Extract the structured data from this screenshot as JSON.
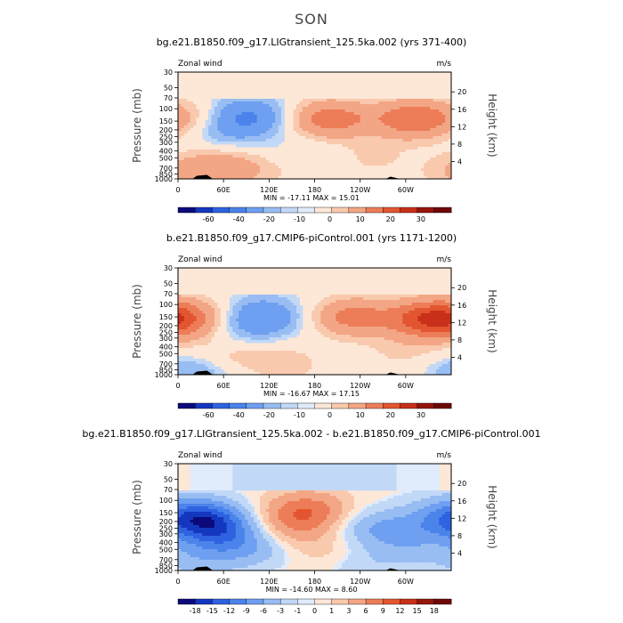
{
  "figure": {
    "season": "SON",
    "colors": {
      "neg": [
        "#0c0a7a",
        "#1437bf",
        "#2f62e0",
        "#4a83ea",
        "#6e9ff0",
        "#98bdf3",
        "#c2d8f7",
        "#e0ecfb"
      ],
      "pos": [
        "#fde7d6",
        "#f9c9ae",
        "#f3a685",
        "#ec7d58",
        "#e35530",
        "#c8301a",
        "#95140c",
        "#6e0808"
      ]
    }
  },
  "chart_data": [
    {
      "type": "heatmap",
      "title": "bg.e21.B1850.f09_g17.LIGtransient_125.5ka.002 (yrs 371-400)",
      "corner_left": "Zonal wind",
      "corner_right": "m/s",
      "ylabel": "Pressure (mb)",
      "ylabel_right": "Height (km)",
      "x_ticks": [
        "0",
        "60E",
        "120E",
        "180",
        "120W",
        "60W"
      ],
      "p_ticks": [
        "30",
        "50",
        "70",
        "100",
        "150",
        "200",
        "250",
        "300",
        "400",
        "500",
        "700",
        "850",
        "1000"
      ],
      "h_ticks": [
        "20",
        "16",
        "12",
        "8",
        "4"
      ],
      "stats": "MIN = -17.11   MAX =  15.01",
      "colorbar_labels": [
        "-60",
        "-40",
        "-20",
        "-10",
        "0",
        "10",
        "20",
        "30"
      ],
      "blobs": [
        {
          "lon": 90,
          "p": 130,
          "v": -11
        },
        {
          "lon": 55,
          "p": 220,
          "v": -4
        },
        {
          "lon": 200,
          "p": 140,
          "v": 13
        },
        {
          "lon": 310,
          "p": 140,
          "v": 14
        },
        {
          "lon": 60,
          "p": 700,
          "v": 8
        },
        {
          "lon": 140,
          "p": 700,
          "v": 3
        },
        {
          "lon": 255,
          "p": 500,
          "v": 3
        },
        {
          "lon": 25,
          "p": 140,
          "v": 5
        },
        {
          "lon": 160,
          "p": 500,
          "v": -3
        },
        {
          "lon": 10,
          "p": 800,
          "v": 4
        }
      ]
    },
    {
      "type": "heatmap",
      "title": "b.e21.B1850.f09_g17.CMIP6-piControl.001 (yrs 1171-1200)",
      "corner_left": "Zonal wind",
      "corner_right": "m/s",
      "ylabel": "Pressure (mb)",
      "ylabel_right": "Height (km)",
      "x_ticks": [
        "0",
        "60E",
        "120E",
        "180",
        "120W",
        "60W"
      ],
      "p_ticks": [
        "30",
        "50",
        "70",
        "100",
        "150",
        "200",
        "250",
        "300",
        "400",
        "500",
        "700",
        "850",
        "1000"
      ],
      "h_ticks": [
        "20",
        "16",
        "12",
        "8",
        "4"
      ],
      "stats": "MIN = -16.67   MAX =  17.15",
      "colorbar_labels": [
        "-60",
        "-40",
        "-20",
        "-10",
        "0",
        "10",
        "20",
        "30"
      ],
      "blobs": [
        {
          "lon": 110,
          "p": 150,
          "v": -10
        },
        {
          "lon": 70,
          "p": 300,
          "v": -3
        },
        {
          "lon": 15,
          "p": 160,
          "v": 10
        },
        {
          "lon": 230,
          "p": 150,
          "v": 12
        },
        {
          "lon": 330,
          "p": 160,
          "v": 17
        },
        {
          "lon": 60,
          "p": 500,
          "v": 5
        },
        {
          "lon": 140,
          "p": 700,
          "v": 4
        },
        {
          "lon": 300,
          "p": 500,
          "v": 3
        },
        {
          "lon": 20,
          "p": 850,
          "v": -6
        }
      ]
    },
    {
      "type": "heatmap",
      "title": "bg.e21.B1850.f09_g17.LIGtransient_125.5ka.002 - b.e21.B1850.f09_g17.CMIP6-piControl.001",
      "corner_left": "Zonal wind",
      "corner_right": "m/s",
      "ylabel": "Pressure (mb)",
      "ylabel_right": "Height (km)",
      "x_ticks": [
        "0",
        "60E",
        "120E",
        "180",
        "120W",
        "60W"
      ],
      "p_ticks": [
        "30",
        "50",
        "70",
        "100",
        "150",
        "200",
        "250",
        "300",
        "400",
        "500",
        "700",
        "850",
        "1000"
      ],
      "h_ticks": [
        "20",
        "16",
        "12",
        "8",
        "4"
      ],
      "stats": "MIN = -14.60   MAX =   8.60",
      "colorbar_labels": [
        "-18",
        "-15",
        "-12",
        "-9",
        "-6",
        "-3",
        "-1",
        "0",
        "1",
        "3",
        "6",
        "9",
        "12",
        "15",
        "18"
      ],
      "blobs": [
        {
          "lon": 30,
          "p": 180,
          "v": -14
        },
        {
          "lon": 60,
          "p": 300,
          "v": -8
        },
        {
          "lon": 100,
          "p": 500,
          "v": -4
        },
        {
          "lon": 170,
          "p": 140,
          "v": 8
        },
        {
          "lon": 145,
          "p": 250,
          "v": 4
        },
        {
          "lon": 260,
          "p": 250,
          "v": -5
        },
        {
          "lon": 310,
          "p": 300,
          "v": -4
        },
        {
          "lon": 340,
          "p": 150,
          "v": -3
        },
        {
          "lon": 300,
          "p": 600,
          "v": -2
        },
        {
          "lon": 190,
          "p": 500,
          "v": 2
        },
        {
          "lon": 30,
          "p": 700,
          "v": -4
        },
        {
          "lon": 240,
          "p": 850,
          "v": -2
        }
      ]
    }
  ]
}
